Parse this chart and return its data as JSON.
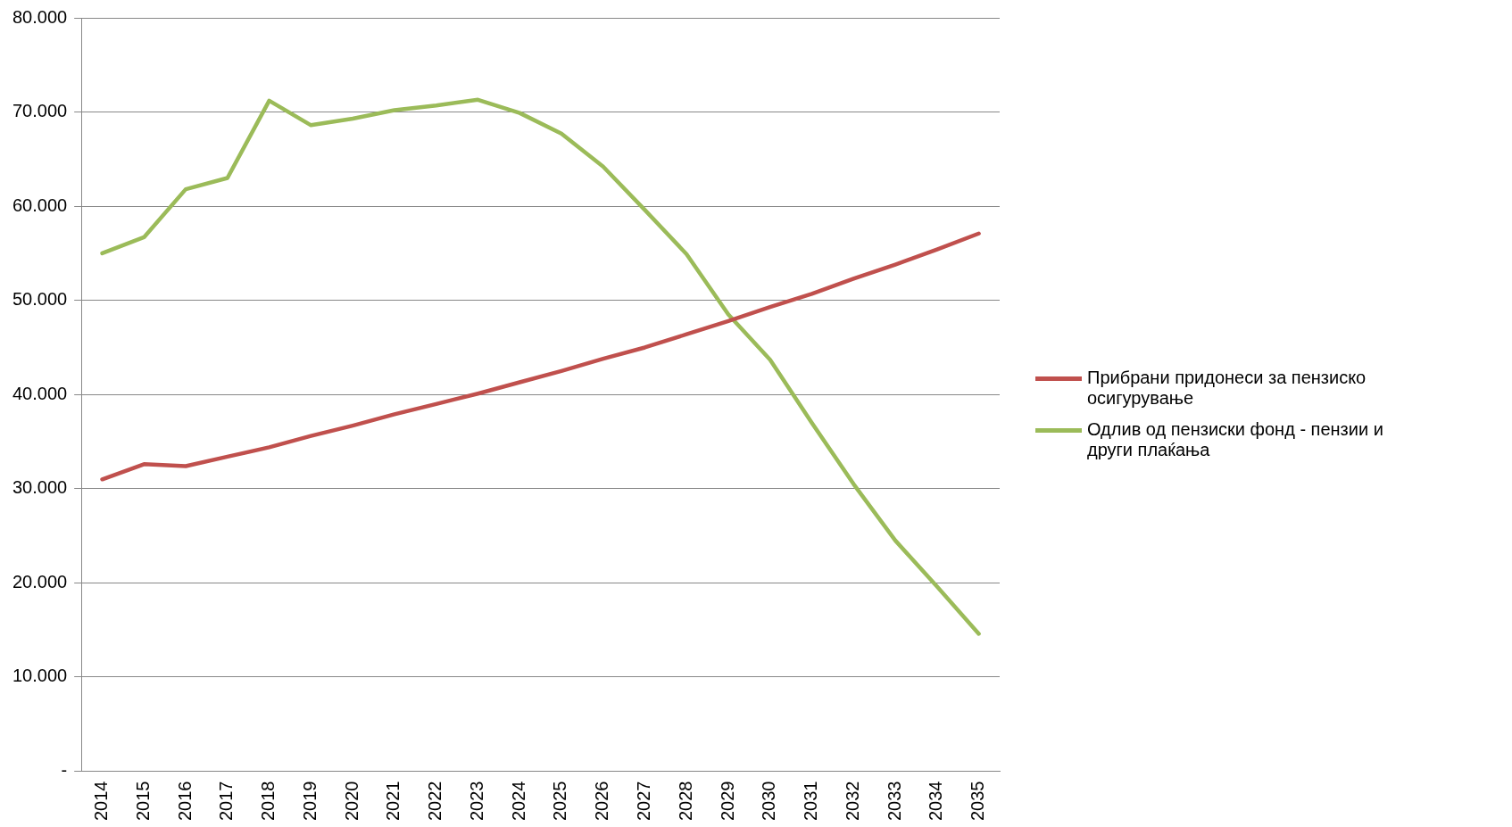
{
  "chart_data": {
    "type": "line",
    "categories": [
      "2014",
      "2015",
      "2016",
      "2017",
      "2018",
      "2019",
      "2020",
      "2021",
      "2022",
      "2023",
      "2024",
      "2025",
      "2026",
      "2027",
      "2028",
      "2029",
      "2030",
      "2031",
      "2032",
      "2033",
      "2034",
      "2035"
    ],
    "series": [
      {
        "name": "Прибрани придонеси за пензиско осигурување",
        "color": "#c0504d",
        "values": [
          31000,
          32600,
          32400,
          33400,
          34400,
          35600,
          36700,
          37900,
          39000,
          40100,
          41300,
          42500,
          43800,
          45000,
          46400,
          47800,
          49300,
          50700,
          52300,
          53800,
          55400,
          57100
        ]
      },
      {
        "name": "Одлив од пензиски фонд - пензии и други плаќања",
        "color": "#9bbb59",
        "values": [
          55000,
          56700,
          61800,
          63000,
          71200,
          68600,
          69300,
          70200,
          70700,
          71300,
          69900,
          67700,
          64200,
          59600,
          54900,
          48500,
          43700,
          37000,
          30500,
          24500,
          19600,
          14600
        ]
      }
    ],
    "ylim": [
      0,
      80000
    ],
    "yticks": [
      {
        "value": 0,
        "label": "-"
      },
      {
        "value": 10000,
        "label": "10.000"
      },
      {
        "value": 20000,
        "label": "20.000"
      },
      {
        "value": 30000,
        "label": "30.000"
      },
      {
        "value": 40000,
        "label": "40.000"
      },
      {
        "value": 50000,
        "label": "50.000"
      },
      {
        "value": 60000,
        "label": "60.000"
      },
      {
        "value": 70000,
        "label": "70.000"
      },
      {
        "value": 80000,
        "label": "80.000"
      }
    ],
    "grid": "y",
    "legend": "right",
    "marker": "none",
    "line_style": "solid"
  }
}
